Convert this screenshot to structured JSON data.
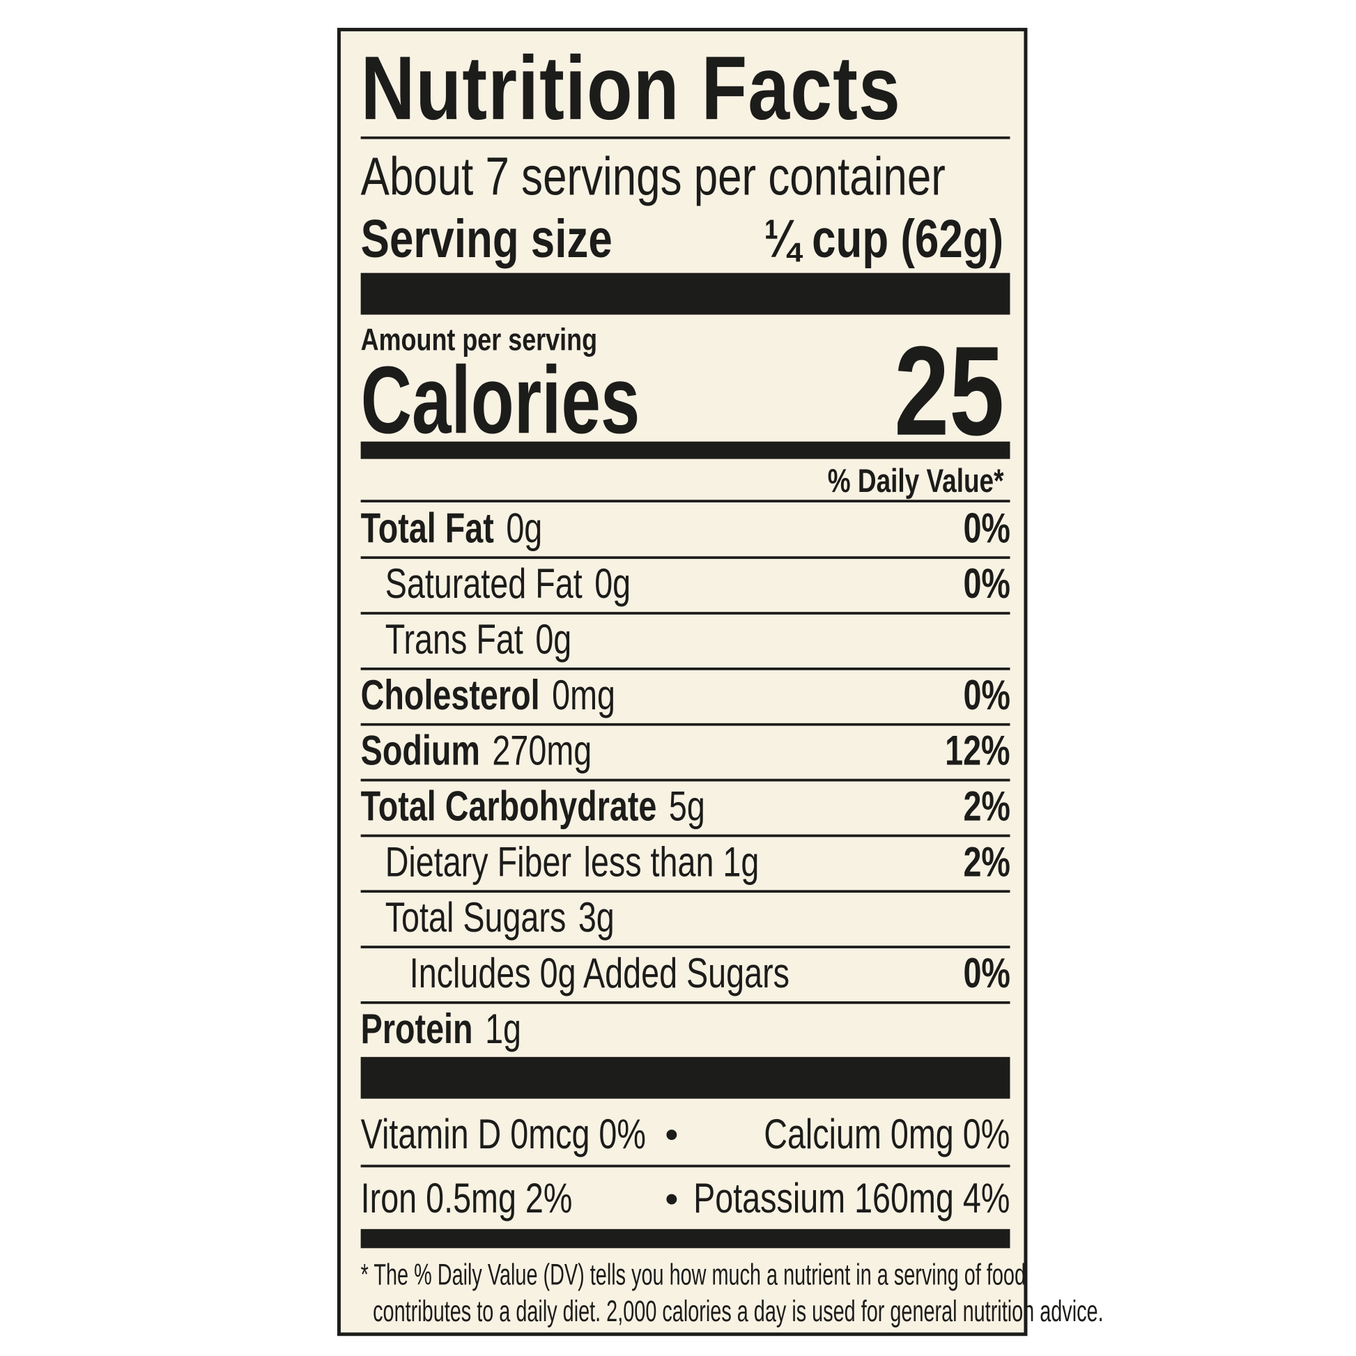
{
  "title": "Nutrition Facts",
  "servings_per_container": "About 7 servings per container",
  "serving_size_label": "Serving size",
  "serving_size_value": "¼ cup (62g)",
  "amount_per_serving": "Amount per serving",
  "calories_label": "Calories",
  "calories_value": "25",
  "daily_value_header": "% Daily Value*",
  "nutrients": [
    {
      "name": "Total Fat",
      "amount": "0g",
      "dv": "0%"
    },
    {
      "name": "Saturated Fat",
      "amount": "0g",
      "dv": "0%"
    },
    {
      "name": "Trans Fat",
      "amount": "0g",
      "dv": ""
    },
    {
      "name": "Cholesterol",
      "amount": "0mg",
      "dv": "0%"
    },
    {
      "name": "Sodium",
      "amount": "270mg",
      "dv": "12%"
    },
    {
      "name": "Total Carbohydrate",
      "amount": "5g",
      "dv": "2%"
    },
    {
      "name": "Dietary Fiber",
      "amount": "less than 1g",
      "dv": "2%"
    },
    {
      "name": "Total Sugars",
      "amount": "3g",
      "dv": ""
    },
    {
      "name": "Includes 0g Added Sugars",
      "amount": "",
      "dv": "0%"
    },
    {
      "name": "Protein",
      "amount": "1g",
      "dv": ""
    }
  ],
  "vitamins": {
    "row1_left": "Vitamin D  0mcg  0%",
    "row1_right": "Calcium  0mg  0%",
    "row2_left": "Iron  0.5mg  2%",
    "row2_right": "Potassium  160mg  4%",
    "bullet": "•"
  },
  "footnote": {
    "line1": "* The % Daily Value (DV) tells you how much a nutrient in a serving of food",
    "line2": "contributes to a daily diet. 2,000 calories a day is used for general nutrition advice."
  },
  "colors": {
    "background": "#f8f2e3",
    "ink": "#1c1c1a"
  }
}
